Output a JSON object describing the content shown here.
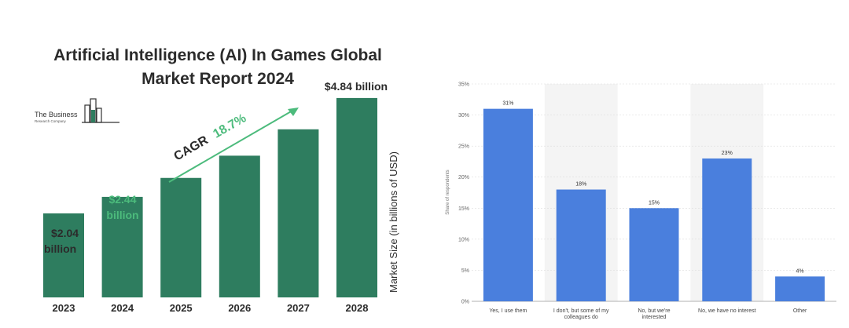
{
  "colors": {
    "bar_green": "#2e7d5f",
    "highlight_green": "#4cbb7c",
    "dark_text": "#2b2b2b",
    "bar_blue": "#4a7fdd",
    "stripe": "#f4f4f4"
  },
  "left": {
    "title_line1": "Artificial Intelligence (AI) In Games Global",
    "title_line2": "Market Report 2024",
    "logo_line1": "The Business",
    "logo_line2": "Research Company",
    "cagr_prefix": "CAGR",
    "cagr_value": "18.7%",
    "first_value_line1": "$2.04",
    "first_value_line2": "billion",
    "second_value_line1": "$2.44",
    "second_value_line2": "billion",
    "last_value": "$4.84 billion",
    "y_axis_label": "Market Size (in billions of USD)"
  },
  "chart_data": [
    {
      "type": "bar",
      "title": "Artificial Intelligence (AI) In Games Global Market Report 2024",
      "ylabel": "Market Size (in billions of USD)",
      "categories": [
        "2023",
        "2024",
        "2025",
        "2026",
        "2027",
        "2028"
      ],
      "values": [
        2.04,
        2.44,
        2.9,
        3.44,
        4.08,
        4.84
      ],
      "annotations": [
        "$2.04 billion",
        "$2.44 billion",
        "$4.84 billion",
        "CAGR 18.7%"
      ]
    },
    {
      "type": "bar",
      "ylabel": "Share of respondents",
      "ylim": [
        0,
        35
      ],
      "yticks": [
        "0%",
        "5%",
        "10%",
        "15%",
        "20%",
        "25%",
        "30%",
        "35%"
      ],
      "categories": [
        [
          "Yes, I use them"
        ],
        [
          "I don't, but some of my",
          "colleagues do"
        ],
        [
          "No, but we're",
          "interested"
        ],
        [
          "No, we have no interest"
        ],
        [
          "Other"
        ]
      ],
      "values": [
        31,
        18,
        15,
        23,
        4
      ],
      "value_labels": [
        "31%",
        "18%",
        "15%",
        "23%",
        "4%"
      ],
      "grid": true
    }
  ]
}
